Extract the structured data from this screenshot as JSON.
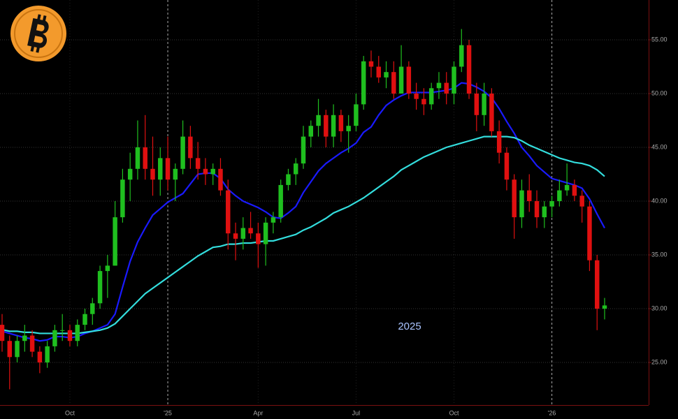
{
  "chart_data": {
    "type": "candlestick",
    "annotation": "2025",
    "categories": [
      null,
      null,
      null,
      null,
      null,
      null,
      null,
      null,
      null,
      "Oct",
      null,
      null,
      null,
      null,
      null,
      null,
      null,
      null,
      null,
      null,
      null,
      null,
      "'25",
      null,
      null,
      null,
      null,
      null,
      null,
      null,
      null,
      null,
      null,
      null,
      "Apr",
      null,
      null,
      null,
      null,
      null,
      null,
      null,
      null,
      null,
      null,
      null,
      null,
      "Jul",
      null,
      null,
      null,
      null,
      null,
      null,
      null,
      null,
      null,
      null,
      null,
      null,
      "Oct",
      null,
      null,
      null,
      null,
      null,
      null,
      null,
      null,
      null,
      null,
      null,
      null,
      "'26",
      null,
      null,
      null,
      null,
      null,
      null,
      null
    ],
    "open": [
      28.5,
      27,
      25.5,
      27,
      27.5,
      26,
      25,
      26.5,
      28,
      28,
      27,
      28.5,
      29.5,
      30.5,
      33.5,
      34,
      38.5,
      42,
      43,
      45,
      43,
      42,
      44,
      42,
      43,
      46,
      44,
      43,
      42.5,
      43,
      41,
      37,
      36.5,
      37.5,
      37,
      36,
      38,
      38.5,
      41.5,
      42.5,
      43.5,
      46,
      47,
      48,
      46,
      48,
      46.5,
      47,
      49,
      53,
      52.5,
      51.5,
      52,
      50,
      52.5,
      50,
      49.5,
      49,
      50.5,
      51,
      50,
      52.5,
      54.5,
      50,
      48,
      50,
      46.5,
      44.5,
      42,
      38.5,
      41,
      40,
      38.5,
      39.5,
      40,
      41,
      41.5,
      40.5,
      39.5,
      34.5,
      30
    ],
    "high": [
      29.5,
      27.5,
      27.5,
      28.5,
      28,
      26.5,
      27,
      28.5,
      29.5,
      28.5,
      29,
      30,
      31,
      34,
      35,
      40,
      43,
      44.5,
      47.5,
      48,
      46,
      45,
      46,
      43.5,
      47.5,
      47,
      45.5,
      44,
      43.5,
      44,
      42,
      38,
      38.5,
      39,
      38,
      38.5,
      39,
      42,
      43,
      44,
      47,
      47.5,
      49.5,
      48.5,
      49,
      48.5,
      48,
      50,
      53.5,
      54,
      53.5,
      53,
      53,
      54.5,
      53,
      51,
      50.5,
      51,
      52,
      52,
      53,
      56,
      55,
      51,
      51,
      50.5,
      47.5,
      45,
      42.5,
      42,
      42.5,
      41,
      40,
      40.5,
      42,
      43.5,
      42,
      41,
      40,
      35,
      31
    ],
    "low": [
      26,
      22.5,
      25,
      26,
      25.5,
      24,
      24.5,
      26,
      27,
      26.5,
      26.5,
      28,
      28.5,
      30,
      31,
      34,
      38,
      40,
      42,
      42,
      40.5,
      40.5,
      41,
      40,
      42.5,
      43,
      42,
      41.5,
      41.5,
      40.5,
      35.5,
      34.5,
      35.5,
      36.5,
      33.8,
      34,
      37,
      38,
      41,
      41.5,
      43,
      45,
      46,
      45,
      45,
      45.5,
      44.5,
      46.5,
      48.5,
      51.5,
      51,
      50.5,
      49.5,
      50,
      49.5,
      48.5,
      48,
      48.5,
      49.5,
      49,
      49,
      52,
      49.5,
      46.5,
      47,
      46,
      43.5,
      41,
      36.5,
      37.5,
      39,
      37.5,
      37.5,
      38.5,
      39.5,
      40.5,
      40,
      38,
      33.5,
      28,
      29
    ],
    "close": [
      27,
      25.5,
      27,
      27.5,
      26,
      25,
      26.5,
      28,
      28,
      27,
      28.5,
      29.5,
      30.5,
      33.5,
      34,
      38.5,
      42,
      43,
      45,
      43,
      42,
      44,
      42,
      43,
      46,
      44,
      43,
      42.5,
      43,
      41,
      37,
      36.5,
      37.5,
      37,
      36,
      38,
      38.5,
      41.5,
      42.5,
      43.5,
      46,
      47,
      48,
      46,
      48,
      46.5,
      47,
      49,
      53,
      52.5,
      51.5,
      52,
      50,
      52.5,
      50,
      49.5,
      49,
      50.5,
      51,
      50,
      52.5,
      54.5,
      50,
      48,
      50,
      46.5,
      44.5,
      42,
      38.5,
      41,
      40,
      38.5,
      39.5,
      40,
      41,
      41.5,
      40.5,
      39.5,
      34.5,
      30,
      30.3
    ],
    "up_color": "#1fbf1f",
    "down_color": "#e01010",
    "lines": [
      {
        "color": "#1a1aff",
        "values": [
          27.9,
          27.7,
          27.5,
          27.3,
          27.2,
          27,
          27.1,
          27.4,
          27.4,
          27.3,
          27.4,
          27.7,
          27.9,
          28.2,
          28.5,
          29.5,
          32,
          34.4,
          36.2,
          37.5,
          38.7,
          39.3,
          39.9,
          40.3,
          40.7,
          41.6,
          42.5,
          42.6,
          42.6,
          42.1,
          41.1,
          40.5,
          40,
          39.7,
          39.4,
          39,
          38.5,
          38.4,
          38.9,
          39.5,
          40.8,
          41.8,
          42.8,
          43.5,
          44,
          44.5,
          44.9,
          45.4,
          46.4,
          46.9,
          48,
          48.9,
          49.4,
          49.8,
          50.1,
          50.1,
          50.1,
          50.1,
          50.2,
          50.3,
          50.5,
          51,
          50.9,
          50.6,
          50.2,
          49.6,
          48.6,
          47.4,
          46.3,
          45,
          44.2,
          43.3,
          42.7,
          42.1,
          41.9,
          41.7,
          41.5,
          41.2,
          40.2,
          38.8,
          37.5
        ]
      },
      {
        "color": "#33dddd",
        "values": [
          28.05,
          27.9,
          27.9,
          27.8,
          27.8,
          27.7,
          27.7,
          27.7,
          27.7,
          27.7,
          27.7,
          27.8,
          27.9,
          28,
          28.2,
          28.6,
          29.3,
          30,
          30.7,
          31.4,
          31.9,
          32.4,
          32.9,
          33.4,
          33.9,
          34.4,
          34.9,
          35.3,
          35.7,
          35.8,
          36,
          36,
          36.1,
          36.1,
          36.2,
          36.3,
          36.3,
          36.5,
          36.7,
          36.9,
          37.3,
          37.6,
          38,
          38.4,
          38.9,
          39.2,
          39.5,
          39.9,
          40.3,
          40.8,
          41.3,
          41.8,
          42.3,
          42.9,
          43.3,
          43.7,
          44.1,
          44.4,
          44.7,
          45,
          45.2,
          45.4,
          45.6,
          45.8,
          46,
          46,
          46,
          46,
          45.9,
          45.6,
          45.2,
          44.9,
          44.6,
          44.3,
          44,
          43.8,
          43.6,
          43.5,
          43.3,
          42.9,
          42.3
        ]
      }
    ],
    "ylim": [
      21.04,
      58.7
    ],
    "yticks": [
      {
        "value": 25,
        "label": "25.00"
      },
      {
        "value": 30,
        "label": "30.00"
      },
      {
        "value": 35,
        "label": "35.00"
      },
      {
        "value": 40,
        "label": "40.00"
      },
      {
        "value": 45,
        "label": "45.00"
      },
      {
        "value": 50,
        "label": "50.00"
      },
      {
        "value": 55,
        "label": "55.00"
      }
    ],
    "grid": true
  }
}
